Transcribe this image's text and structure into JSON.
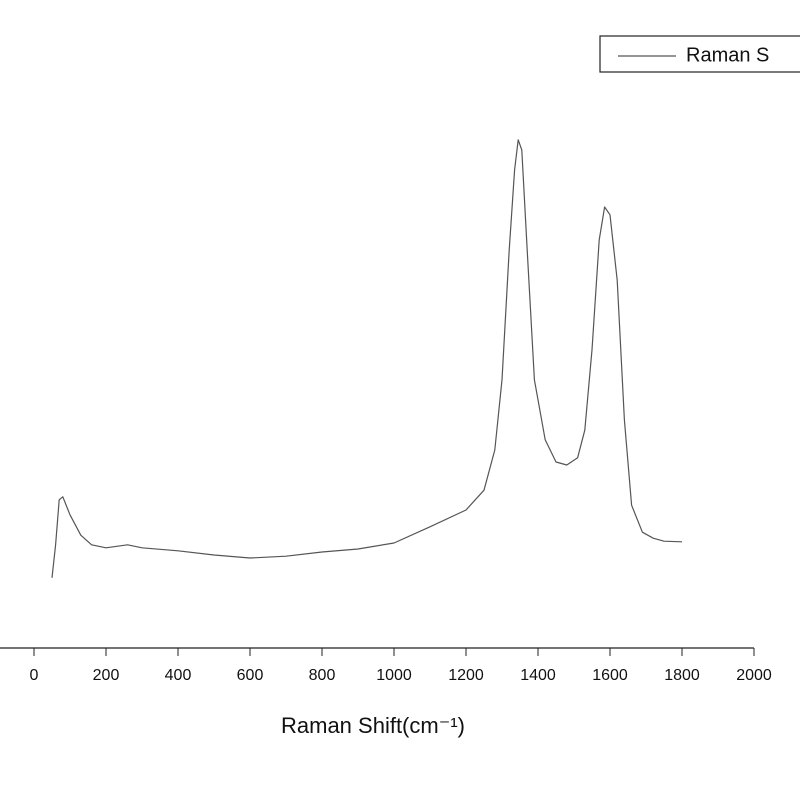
{
  "chart_data": {
    "type": "line",
    "x_label": "Raman Shift(cm⁻¹)",
    "xlim": [
      0,
      2000
    ],
    "xticks": [
      0,
      200,
      400,
      600,
      800,
      1000,
      1200,
      1400,
      1600,
      1800,
      2000
    ],
    "ylim": [
      0,
      100
    ],
    "legend": "top-right",
    "x": [
      50,
      60,
      70,
      80,
      100,
      130,
      160,
      200,
      260,
      300,
      400,
      500,
      600,
      700,
      800,
      900,
      1000,
      1100,
      1200,
      1250,
      1280,
      1300,
      1320,
      1335,
      1345,
      1355,
      1370,
      1390,
      1420,
      1450,
      1480,
      1510,
      1530,
      1550,
      1570,
      1585,
      1600,
      1620,
      1640,
      1660,
      1690,
      1720,
      1750,
      1800
    ],
    "series": [
      {
        "name": "Raman S",
        "color": "#555555",
        "values": [
          11.7,
          17.2,
          24.7,
          25.2,
          22.2,
          18.8,
          17.2,
          16.7,
          17.2,
          16.7,
          16.2,
          15.5,
          15,
          15.3,
          16,
          16.5,
          17.5,
          20.2,
          23,
          26.3,
          33,
          44.7,
          66.3,
          79.7,
          84.7,
          83,
          66.3,
          44.7,
          34.7,
          31,
          30.5,
          31.7,
          36.3,
          49.7,
          68,
          73.5,
          72.2,
          61.3,
          38,
          23.8,
          19.3,
          18.3,
          17.8,
          17.7
        ]
      }
    ]
  }
}
